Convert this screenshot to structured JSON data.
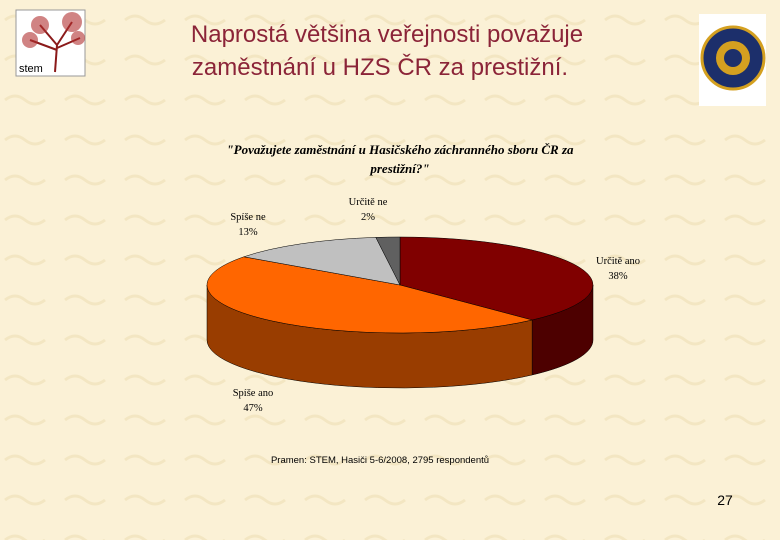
{
  "slide_title": [
    "Naprostá většina veřejnosti považuje",
    "zaměstnání u HZS ČR za prestižní."
  ],
  "logo_text": "stem",
  "chart_data": {
    "type": "pie",
    "title": "\"Považujete zaměstnání u Hasičského záchranného sboru ČR za prestižní?\"",
    "categories": [
      "Určitě ano",
      "Spíše ano",
      "Spíše ne",
      "Určitě ne"
    ],
    "values": [
      38,
      47,
      13,
      2
    ],
    "value_labels": [
      "38%",
      "47%",
      "13%",
      "2%"
    ],
    "colors": [
      "#800000",
      "#ff6600",
      "#c0c0c0",
      "#606060"
    ]
  },
  "source": "Pramen: STEM, Hasiči 5-6/2008, 2795 respondentů",
  "page_number": "27"
}
